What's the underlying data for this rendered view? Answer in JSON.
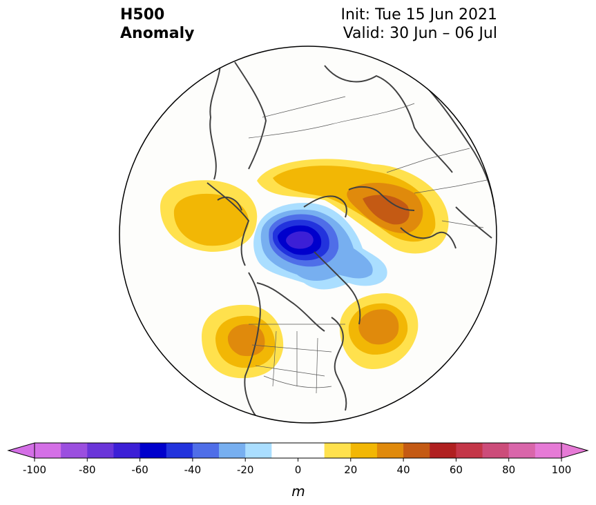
{
  "title": {
    "left_line1": "H500",
    "left_line2": "Anomaly",
    "right_line1": "Init: Tue 15 Jun 2021",
    "right_line2": "Valid: 30 Jun – 06 Jul"
  },
  "map": {
    "projection": "north-polar-stereographic",
    "field": "500 hPa geopotential height anomaly",
    "anomaly_centers": [
      {
        "region": "Arctic Ocean / Canadian Archipelago",
        "sign": "negative",
        "peak_m": -60
      },
      {
        "region": "Western North America",
        "sign": "positive",
        "peak_m": 40
      },
      {
        "region": "Northwest Atlantic / Newfoundland",
        "sign": "positive",
        "peak_m": 40
      },
      {
        "region": "Western Russia / Scandinavia",
        "sign": "positive",
        "peak_m": 50
      },
      {
        "region": "Eastern Siberia / Bering",
        "sign": "positive",
        "peak_m": 30
      },
      {
        "region": "Northern Siberia ridge",
        "sign": "positive",
        "peak_m": 20
      }
    ]
  },
  "colorbar": {
    "unit_label": "m",
    "min": -100,
    "max": 100,
    "step": 10,
    "extend": "both",
    "ticks": [
      "-100",
      "-80",
      "-60",
      "-40",
      "-20",
      "0",
      "20",
      "40",
      "60",
      "80",
      "100"
    ],
    "colors": [
      "#d46fe6",
      "#9b4fdf",
      "#6a35d9",
      "#3c1fd6",
      "#0000cc",
      "#2233dd",
      "#4f6ee8",
      "#77aff0",
      "#aadeff",
      "#ffffff",
      "#ffffff",
      "#ffe14d",
      "#f2b705",
      "#e08a0c",
      "#c45a14",
      "#b02020",
      "#c43648",
      "#cc4c7a",
      "#d966aa",
      "#e67ad6"
    ],
    "under_color": "#d46fe6",
    "over_color": "#e67ad6"
  }
}
